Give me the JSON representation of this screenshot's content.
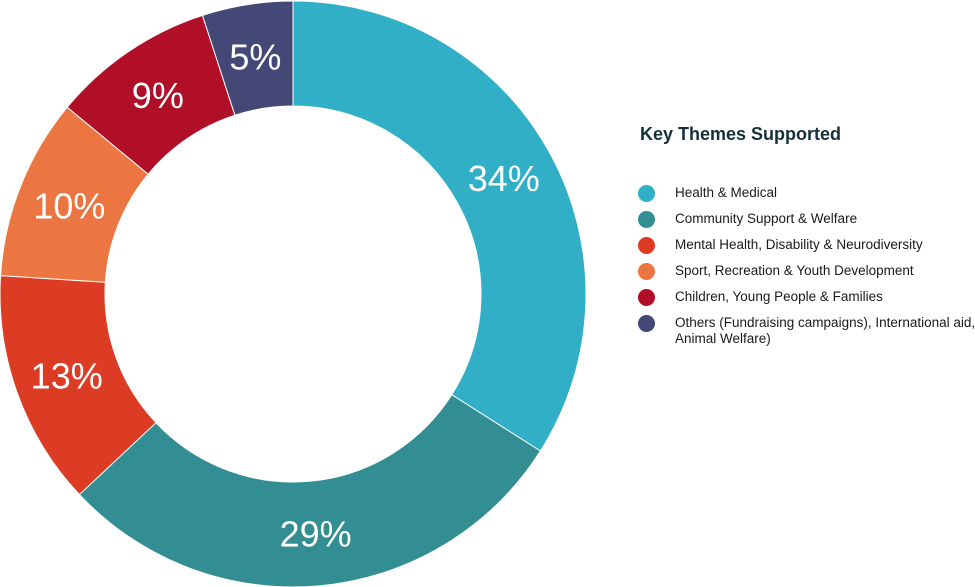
{
  "chart_data": {
    "type": "pie",
    "title": "",
    "slices": [
      {
        "label": "Health & Medical",
        "value": 34,
        "display": "34%",
        "color": "#31afc7"
      },
      {
        "label": "Community Support & Welfare",
        "value": 29,
        "display": "29%",
        "color": "#338e93"
      },
      {
        "label": "Mental Health, Disability & Neurodiversity",
        "value": 13,
        "display": "13%",
        "color": "#dd3c24"
      },
      {
        "label": "Sport, Recreation & Youth Development",
        "value": 10,
        "display": "10%",
        "color": "#ec7642"
      },
      {
        "label": "Children, Young People & Families",
        "value": 9,
        "display": "9%",
        "color": "#b10e27"
      },
      {
        "label": "Others (Fundraising campaigns), International aid, Animal Welfare)",
        "value": 5,
        "display": "5%",
        "color": "#444877"
      }
    ],
    "donut": true,
    "legend": {
      "title": "Key Themes Supported",
      "placement": "right"
    }
  }
}
